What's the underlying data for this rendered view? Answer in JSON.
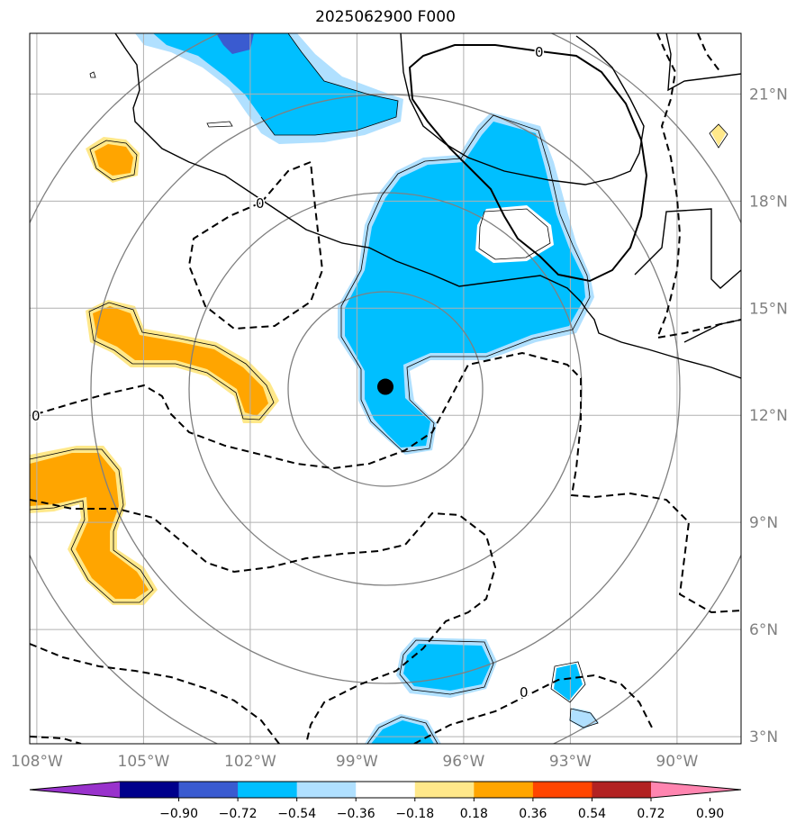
{
  "title": "2025062900 F000",
  "map": {
    "lon_range": [
      -108.2,
      -88.2
    ],
    "lat_range": [
      2.8,
      22.7
    ],
    "lon_ticks": [
      {
        "lon": -108,
        "label": "108°W"
      },
      {
        "lon": -105,
        "label": "105°W"
      },
      {
        "lon": -102,
        "label": "102°W"
      },
      {
        "lon": -99,
        "label": "99°W"
      },
      {
        "lon": -96,
        "label": "96°W"
      },
      {
        "lon": -93,
        "label": "93°W"
      },
      {
        "lon": -90,
        "label": "90°W"
      }
    ],
    "lat_ticks": [
      {
        "lat": 3,
        "label": "3°N"
      },
      {
        "lat": 6,
        "label": "6°N"
      },
      {
        "lat": 9,
        "label": "9°N"
      },
      {
        "lat": 12,
        "label": "12°N"
      },
      {
        "lat": 15,
        "label": "15°N"
      },
      {
        "lat": 18,
        "label": "18°N"
      },
      {
        "lat": 21,
        "label": "21°N"
      }
    ],
    "gridlines": true,
    "storm_center": {
      "lon": -98.2,
      "lat": 12.8
    },
    "range_rings": "concentric circles around storm center",
    "contour_labels": [
      "0",
      "0",
      "0",
      "0"
    ]
  },
  "colorbar": {
    "colors": [
      "#9932cc",
      "#00008b",
      "#3a5bd0",
      "#00bfff",
      "#b0e0ff",
      "#ffffff",
      "#ffe88a",
      "#ffa500",
      "#ff4500",
      "#b22222",
      "#ff85b0"
    ],
    "tick_labels": [
      "−0.90",
      "−0.72",
      "−0.54",
      "−0.36",
      "−0.18",
      "0.18",
      "0.36",
      "0.54",
      "0.72",
      "0.90"
    ]
  }
}
